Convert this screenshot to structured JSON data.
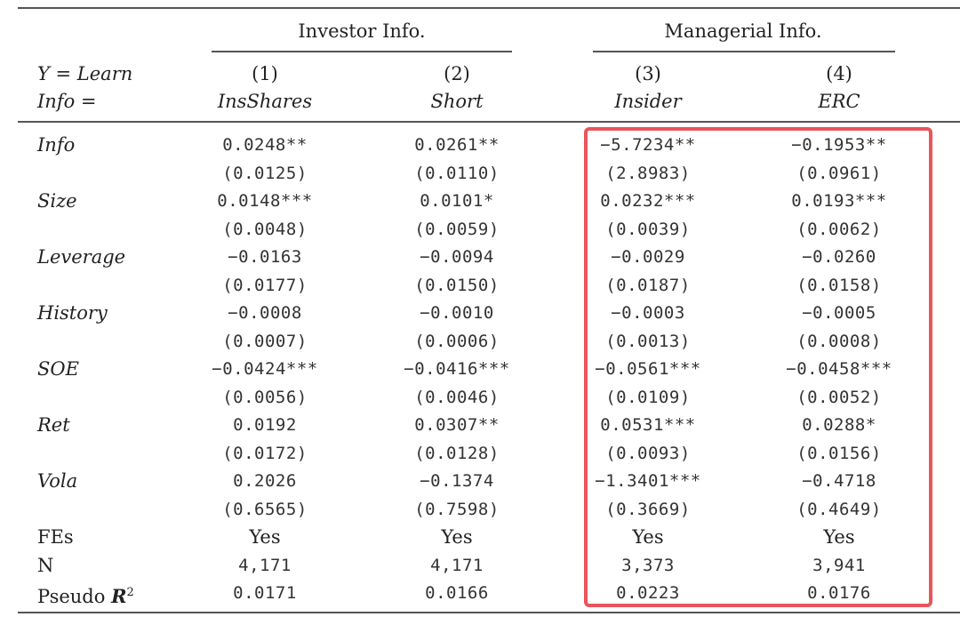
{
  "header": {
    "groups": [
      {
        "label": "Investor Info."
      },
      {
        "label": "Managerial Info."
      }
    ],
    "y_label": "Y = Learn",
    "info_label": "Info =",
    "columns": [
      {
        "number": "(1)",
        "name": "InsShares"
      },
      {
        "number": "(2)",
        "name": "Short"
      },
      {
        "number": "(3)",
        "name": "Insider"
      },
      {
        "number": "(4)",
        "name": "ERC"
      }
    ]
  },
  "rows": [
    {
      "label": "Info",
      "italic": true,
      "est": [
        "0.0248**",
        "0.0261**",
        "−5.7234**",
        "−0.1953**"
      ],
      "se": [
        "(0.0125)",
        "(0.0110)",
        "(2.8983)",
        "(0.0961)"
      ]
    },
    {
      "label": "Size",
      "italic": true,
      "est": [
        "0.0148***",
        "0.0101*",
        "0.0232***",
        "0.0193***"
      ],
      "se": [
        "(0.0048)",
        "(0.0059)",
        "(0.0039)",
        "(0.0062)"
      ]
    },
    {
      "label": "Leverage",
      "italic": true,
      "est": [
        "−0.0163",
        "−0.0094",
        "−0.0029",
        "−0.0260"
      ],
      "se": [
        "(0.0177)",
        "(0.0150)",
        "(0.0187)",
        "(0.0158)"
      ]
    },
    {
      "label": "History",
      "italic": true,
      "est": [
        "−0.0008",
        "−0.0010",
        "−0.0003",
        "−0.0005"
      ],
      "se": [
        "(0.0007)",
        "(0.0006)",
        "(0.0013)",
        "(0.0008)"
      ]
    },
    {
      "label": "SOE",
      "italic": true,
      "est": [
        "−0.0424***",
        "−0.0416***",
        "−0.0561***",
        "−0.0458***"
      ],
      "se": [
        "(0.0056)",
        "(0.0046)",
        "(0.0109)",
        "(0.0052)"
      ]
    },
    {
      "label": "Ret",
      "italic": true,
      "est": [
        "0.0192",
        "0.0307**",
        "0.0531***",
        "0.0288*"
      ],
      "se": [
        "(0.0172)",
        "(0.0128)",
        "(0.0093)",
        "(0.0156)"
      ]
    },
    {
      "label": "Vola",
      "italic": true,
      "est": [
        "0.2026",
        "−0.1374",
        "−1.3401***",
        "−0.4718"
      ],
      "se": [
        "(0.6565)",
        "(0.7598)",
        "(0.3669)",
        "(0.4649)"
      ]
    }
  ],
  "footer": [
    {
      "label": "FEs",
      "values": [
        "Yes",
        "Yes",
        "Yes",
        "Yes"
      ]
    },
    {
      "label": "N",
      "values": [
        "4,171",
        "4,171",
        "3,373",
        "3,941"
      ]
    },
    {
      "label": "Pseudo R",
      "sup": "2",
      "values": [
        "0.0171",
        "0.0166",
        "0.0223",
        "0.0176"
      ]
    }
  ],
  "highlight": {
    "color": "#e8555b"
  }
}
